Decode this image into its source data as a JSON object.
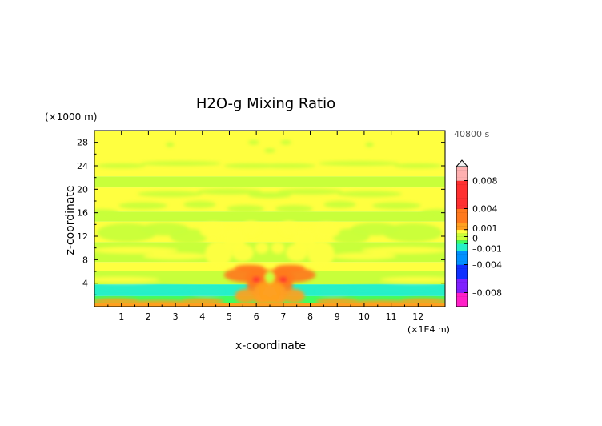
{
  "chart_data": {
    "type": "heatmap",
    "title": "H2O-g Mixing Ratio",
    "xlabel": "x-coordinate",
    "ylabel": "z-coordinate",
    "x_unit": "(×1E4 m)",
    "y_unit": "(×1000 m)",
    "time_label": "40800 s",
    "xlim": [
      0,
      13
    ],
    "ylim": [
      0,
      30
    ],
    "x_ticks": [
      1,
      2,
      3,
      4,
      5,
      6,
      7,
      8,
      9,
      10,
      11,
      12
    ],
    "x_tick_labels": [
      "1",
      "2",
      "3",
      "4",
      "5",
      "6",
      "7",
      "8",
      "9",
      "10",
      "11",
      "12"
    ],
    "y_ticks": [
      4,
      8,
      12,
      16,
      20,
      24,
      28
    ],
    "y_tick_labels": [
      "4",
      "8",
      "12",
      "16",
      "20",
      "24",
      "28"
    ],
    "field_bands": [
      {
        "z": [
          0.0,
          0.6
        ],
        "value": 0.001
      },
      {
        "z": [
          0.6,
          1.8
        ],
        "value": -0.0008
      },
      {
        "z": [
          1.8,
          3.8
        ],
        "value": -0.001
      },
      {
        "z": [
          3.8,
          6.0
        ],
        "value": 0.0
      },
      {
        "z": [
          6.0,
          7.6
        ],
        "value": 0.0005
      },
      {
        "z": [
          7.6,
          11.0
        ],
        "value": 0.0
      },
      {
        "z": [
          11.0,
          14.5
        ],
        "value": 0.0005
      },
      {
        "z": [
          14.5,
          16.2
        ],
        "value": 0.0
      },
      {
        "z": [
          16.2,
          20.3
        ],
        "value": 0.0005
      },
      {
        "z": [
          20.3,
          22.2
        ],
        "value": 0.0
      },
      {
        "z": [
          22.2,
          30.0
        ],
        "value": 0.0005
      }
    ],
    "core_anomaly": {
      "x_center": 6.5,
      "z_range": [
        0.5,
        7.5
      ],
      "max_value": 0.004
    },
    "colorbar": {
      "tick_values": [
        0.008,
        0.004,
        0.001,
        0,
        -0.001,
        -0.004,
        -0.008
      ],
      "tick_labels": [
        "0.008",
        "0.004",
        "0.001",
        "0",
        "–0.001",
        "–0.004",
        "–0.008"
      ],
      "range": [
        -0.01,
        0.01
      ]
    },
    "colors": {
      "positive_high": "#ffb0b0",
      "positive": "#ff3030",
      "positive_mid": "#ff7a1e",
      "positive_low": "#ffa020",
      "near_zero_pos": "#ffff40",
      "near_zero": "#c8ff3a",
      "near_zero_neg": "#40ff60",
      "negative_low": "#26f0c8",
      "negative": "#0090ff",
      "negative_mid": "#1030ff",
      "negative_high": "#8020ff",
      "negative_extreme": "#ff20c8"
    }
  }
}
